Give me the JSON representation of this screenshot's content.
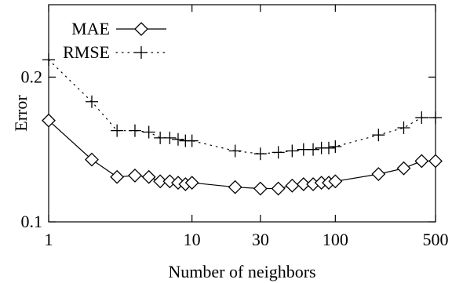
{
  "chart_data": {
    "type": "line",
    "xlabel": "Number of neighbors",
    "ylabel": "Error",
    "xscale": "log",
    "xlim": [
      1,
      500
    ],
    "ylim": [
      0.1,
      0.25
    ],
    "xticks": [
      {
        "value": 1,
        "label": "1"
      },
      {
        "value": 10,
        "label": "10"
      },
      {
        "value": 30,
        "label": "30"
      },
      {
        "value": 100,
        "label": "100"
      },
      {
        "value": 500,
        "label": "500"
      }
    ],
    "yticks": [
      {
        "value": 0.1,
        "label": "0.1"
      },
      {
        "value": 0.2,
        "label": "0.2"
      }
    ],
    "grid": false,
    "legend": "top-left",
    "series": [
      {
        "name": "MAE",
        "marker": "diamond",
        "line": "solid",
        "color": "#000000",
        "points": [
          [
            1,
            0.17
          ],
          [
            2,
            0.143
          ],
          [
            3,
            0.131
          ],
          [
            4,
            0.132
          ],
          [
            5,
            0.131
          ],
          [
            6,
            0.128
          ],
          [
            7,
            0.128
          ],
          [
            8,
            0.127
          ],
          [
            9,
            0.126
          ],
          [
            10,
            0.127
          ],
          [
            20,
            0.124
          ],
          [
            30,
            0.123
          ],
          [
            40,
            0.123
          ],
          [
            50,
            0.125
          ],
          [
            60,
            0.126
          ],
          [
            70,
            0.126
          ],
          [
            80,
            0.127
          ],
          [
            90,
            0.127
          ],
          [
            100,
            0.128
          ],
          [
            200,
            0.133
          ],
          [
            300,
            0.137
          ],
          [
            400,
            0.142
          ],
          [
            500,
            0.142
          ]
        ]
      },
      {
        "name": "RMSE",
        "marker": "plus",
        "line": "dotted",
        "color": "#000000",
        "points": [
          [
            1,
            0.212
          ],
          [
            2,
            0.183
          ],
          [
            3,
            0.163
          ],
          [
            4,
            0.163
          ],
          [
            5,
            0.162
          ],
          [
            6,
            0.158
          ],
          [
            7,
            0.158
          ],
          [
            8,
            0.157
          ],
          [
            9,
            0.156
          ],
          [
            10,
            0.156
          ],
          [
            20,
            0.149
          ],
          [
            30,
            0.147
          ],
          [
            40,
            0.148
          ],
          [
            50,
            0.149
          ],
          [
            60,
            0.15
          ],
          [
            70,
            0.15
          ],
          [
            80,
            0.151
          ],
          [
            90,
            0.151
          ],
          [
            100,
            0.152
          ],
          [
            200,
            0.16
          ],
          [
            300,
            0.165
          ],
          [
            400,
            0.172
          ],
          [
            500,
            0.172
          ]
        ]
      }
    ]
  }
}
